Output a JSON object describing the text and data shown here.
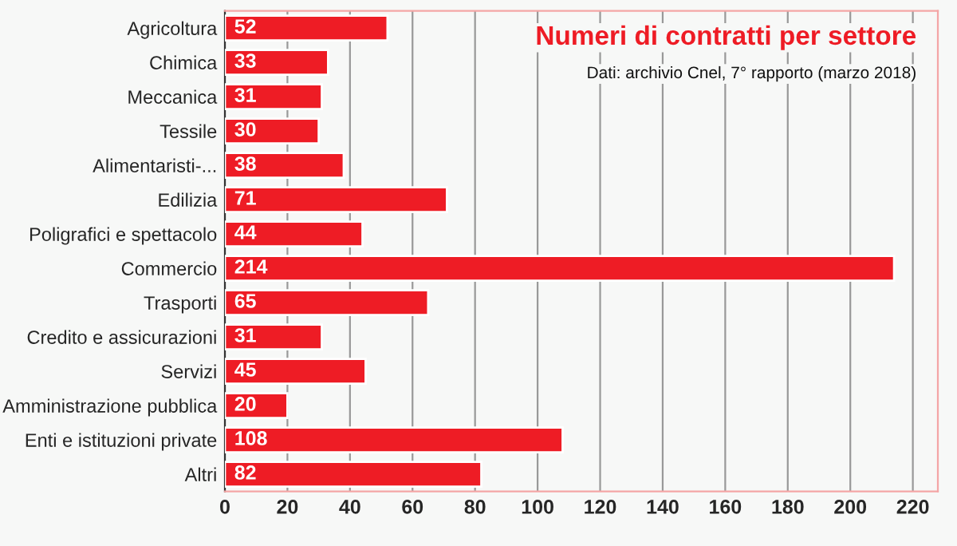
{
  "chart_data": {
    "type": "bar",
    "orientation": "horizontal",
    "title": "Numeri di contratti per settore",
    "subtitle": "Dati: archivio Cnel, 7° rapporto (marzo 2018)",
    "categories": [
      "Agricoltura",
      "Chimica",
      "Meccanica",
      "Tessile",
      "Alimentaristi-...",
      "Edilizia",
      "Poligrafici e spettacolo",
      "Commercio",
      "Trasporti",
      "Credito e assicurazioni",
      "Servizi",
      "Amministrazione pubblica",
      "Enti e istituzioni private",
      "Altri"
    ],
    "values": [
      52,
      33,
      31,
      30,
      38,
      71,
      44,
      214,
      65,
      31,
      45,
      20,
      108,
      82
    ],
    "color": "#ee1c25",
    "data_labels": true,
    "grid": "x",
    "legend": false,
    "xlim": [
      0,
      228
    ],
    "xticks": [
      0,
      20,
      40,
      60,
      80,
      100,
      120,
      140,
      160,
      180,
      200,
      220
    ]
  }
}
